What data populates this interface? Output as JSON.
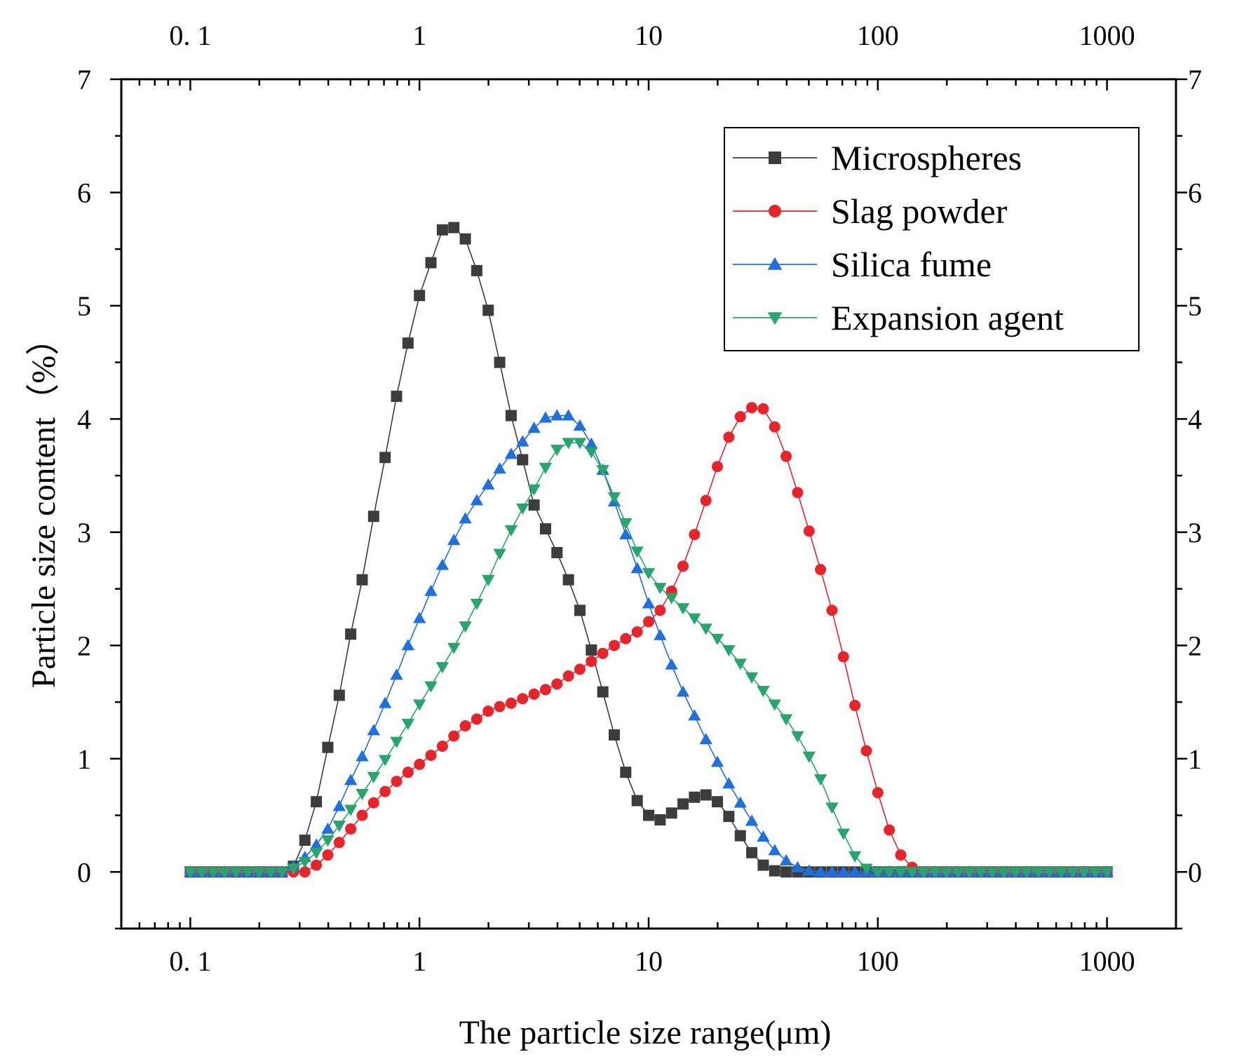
{
  "chart_data": {
    "type": "line",
    "title": "",
    "xlabel": "The particle size  range(μm)",
    "ylabel": "Particle size content（%）",
    "xscale": "log",
    "xlim": [
      0.05,
      2000
    ],
    "ylim": [
      -0.5,
      7
    ],
    "x_ticks": [
      "0. 1",
      "1",
      "10",
      "100",
      "1000"
    ],
    "x_tick_values": [
      0.1,
      1,
      10,
      100,
      1000
    ],
    "y_ticks": [
      "0",
      "1",
      "2",
      "3",
      "4",
      "5",
      "6",
      "7"
    ],
    "y_tick_values": [
      0,
      1,
      2,
      3,
      4,
      5,
      6,
      7
    ],
    "mirror_axes": true,
    "grid": false,
    "legend_position": "top-right",
    "x_from_exp": {
      "base": 10,
      "start": -1,
      "step": 0.05,
      "count": 81
    },
    "series": [
      {
        "name": "Microspheres",
        "color": "#3c3c3c",
        "marker": "square",
        "values": [
          0,
          0,
          0,
          0,
          0,
          0,
          0,
          0,
          0,
          0.05,
          0.28,
          0.62,
          1.1,
          1.56,
          2.1,
          2.58,
          3.14,
          3.66,
          4.2,
          4.67,
          5.09,
          5.38,
          5.67,
          5.69,
          5.59,
          5.31,
          4.96,
          4.5,
          4.03,
          3.64,
          3.24,
          3.03,
          2.82,
          2.58,
          2.31,
          1.96,
          1.59,
          1.21,
          0.88,
          0.63,
          0.5,
          0.46,
          0.52,
          0.6,
          0.66,
          0.68,
          0.62,
          0.49,
          0.32,
          0.17,
          0.06,
          0.01,
          0,
          0,
          0,
          0,
          0,
          0,
          0,
          0,
          0,
          0,
          0,
          0,
          0,
          0,
          0,
          0,
          0,
          0,
          0,
          0,
          0,
          0,
          0,
          0,
          0,
          0,
          0,
          0,
          0
        ]
      },
      {
        "name": "Slag powder",
        "color": "#e8232a",
        "marker": "circle",
        "values": [
          0,
          0,
          0,
          0,
          0,
          0,
          0,
          0,
          0,
          0,
          0,
          0.06,
          0.15,
          0.26,
          0.38,
          0.5,
          0.61,
          0.71,
          0.8,
          0.88,
          0.95,
          1.03,
          1.11,
          1.2,
          1.29,
          1.35,
          1.42,
          1.46,
          1.49,
          1.53,
          1.57,
          1.61,
          1.66,
          1.73,
          1.79,
          1.86,
          1.93,
          2.0,
          2.06,
          2.12,
          2.21,
          2.31,
          2.48,
          2.7,
          2.98,
          3.28,
          3.58,
          3.84,
          4.02,
          4.1,
          4.09,
          3.93,
          3.67,
          3.35,
          3.01,
          2.67,
          2.31,
          1.9,
          1.47,
          1.07,
          0.7,
          0.37,
          0.15,
          0.04,
          0,
          0,
          0,
          0,
          0,
          0,
          0,
          0,
          0,
          0,
          0,
          0,
          0,
          0,
          0,
          0,
          0
        ]
      },
      {
        "name": "Silica fume",
        "color": "#1f6fe0",
        "marker": "triangle-up",
        "values": [
          0,
          0,
          0,
          0,
          0,
          0,
          0,
          0,
          0,
          0.05,
          0.13,
          0.24,
          0.38,
          0.58,
          0.81,
          1.02,
          1.25,
          1.49,
          1.74,
          2.0,
          2.24,
          2.48,
          2.71,
          2.93,
          3.12,
          3.28,
          3.42,
          3.56,
          3.69,
          3.8,
          3.92,
          4.01,
          4.03,
          4.03,
          3.94,
          3.78,
          3.55,
          3.27,
          2.98,
          2.68,
          2.37,
          2.09,
          1.83,
          1.59,
          1.38,
          1.17,
          0.97,
          0.78,
          0.61,
          0.45,
          0.31,
          0.19,
          0.1,
          0.04,
          0.01,
          0,
          0,
          0,
          0,
          0,
          0,
          0,
          0,
          0,
          0,
          0,
          0,
          0,
          0,
          0,
          0,
          0,
          0,
          0,
          0,
          0,
          0,
          0,
          0,
          0,
          0
        ]
      },
      {
        "name": "Expansion agent",
        "color": "#27a56c",
        "marker": "triangle-down",
        "values": [
          0,
          0,
          0,
          0,
          0,
          0,
          0,
          0,
          0,
          0.03,
          0.09,
          0.17,
          0.28,
          0.41,
          0.55,
          0.69,
          0.84,
          0.99,
          1.15,
          1.31,
          1.48,
          1.64,
          1.81,
          1.98,
          2.17,
          2.37,
          2.58,
          2.81,
          3.02,
          3.21,
          3.38,
          3.57,
          3.73,
          3.79,
          3.79,
          3.71,
          3.55,
          3.31,
          3.08,
          2.83,
          2.64,
          2.51,
          2.42,
          2.33,
          2.24,
          2.15,
          2.06,
          1.96,
          1.84,
          1.72,
          1.6,
          1.48,
          1.35,
          1.2,
          1.02,
          0.82,
          0.57,
          0.34,
          0.14,
          0.03,
          0,
          0,
          0,
          0,
          0,
          0,
          0,
          0,
          0,
          0,
          0,
          0,
          0,
          0,
          0,
          0,
          0,
          0,
          0,
          0,
          0
        ]
      }
    ]
  }
}
